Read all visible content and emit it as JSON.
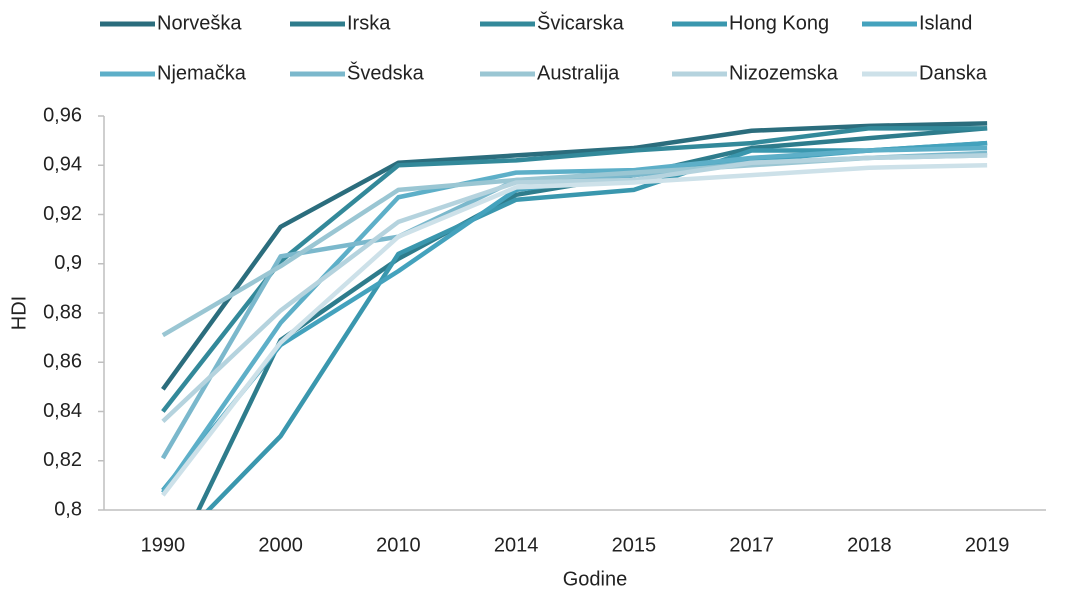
{
  "chart_data": {
    "type": "line",
    "x_label": "Godine",
    "y_label": "HDI",
    "categories": [
      "1990",
      "2000",
      "2010",
      "2014",
      "2015",
      "2017",
      "2018",
      "2019"
    ],
    "ylim": [
      0.8,
      0.96
    ],
    "yticks": [
      {
        "value": 0.8,
        "label": "0,8"
      },
      {
        "value": 0.82,
        "label": "0,82"
      },
      {
        "value": 0.84,
        "label": "0,84"
      },
      {
        "value": 0.86,
        "label": "0,86"
      },
      {
        "value": 0.88,
        "label": "0,88"
      },
      {
        "value": 0.9,
        "label": "0,9"
      },
      {
        "value": 0.92,
        "label": "0,92"
      },
      {
        "value": 0.94,
        "label": "0,94"
      },
      {
        "value": 0.96,
        "label": "0,96"
      }
    ],
    "series": [
      {
        "name": "Norveška",
        "color": "#2b6d7d",
        "values": [
          0.849,
          0.915,
          0.941,
          0.944,
          0.947,
          0.954,
          0.956,
          0.957
        ]
      },
      {
        "name": "Irska",
        "color": "#2e7c8c",
        "values": [
          0.77,
          0.869,
          0.902,
          0.928,
          0.936,
          0.947,
          0.951,
          0.955
        ]
      },
      {
        "name": "Švicarska",
        "color": "#33899a",
        "values": [
          0.84,
          0.901,
          0.94,
          0.942,
          0.946,
          0.949,
          0.955,
          0.955
        ]
      },
      {
        "name": "Hong Kong",
        "color": "#3a97ae",
        "values": [
          0.781,
          0.83,
          0.904,
          0.926,
          0.93,
          0.946,
          0.946,
          0.949
        ]
      },
      {
        "name": "Island",
        "color": "#44a2bd",
        "values": [
          0.808,
          0.867,
          0.897,
          0.93,
          0.936,
          0.942,
          0.946,
          0.949
        ]
      },
      {
        "name": "Njemačka",
        "color": "#5dafc8",
        "values": [
          0.807,
          0.876,
          0.927,
          0.937,
          0.938,
          0.943,
          0.946,
          0.947
        ]
      },
      {
        "name": "Švedska",
        "color": "#7bb8cc",
        "values": [
          0.821,
          0.903,
          0.911,
          0.934,
          0.936,
          0.941,
          0.943,
          0.945
        ]
      },
      {
        "name": "Australija",
        "color": "#9ac6d3",
        "values": [
          0.871,
          0.899,
          0.93,
          0.934,
          0.937,
          0.94,
          0.943,
          0.944
        ]
      },
      {
        "name": "Nizozemska",
        "color": "#b5d3de",
        "values": [
          0.836,
          0.881,
          0.917,
          0.933,
          0.934,
          0.941,
          0.943,
          0.944
        ]
      },
      {
        "name": "Danska",
        "color": "#cde1e9",
        "values": [
          0.806,
          0.868,
          0.911,
          0.931,
          0.933,
          0.936,
          0.939,
          0.94
        ]
      }
    ]
  }
}
